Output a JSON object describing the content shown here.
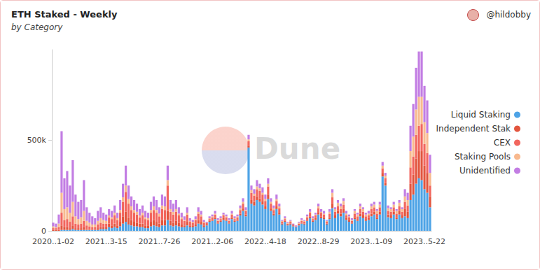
{
  "chart_data": {
    "type": "bar",
    "title": "ETH Staked - Weekly",
    "subtitle": "by Category",
    "author": "@hildobby",
    "watermark": "Dune",
    "categories": [
      "2020..1-02",
      null,
      null,
      null,
      null,
      null,
      null,
      null,
      null,
      null,
      null,
      null,
      null,
      null,
      null,
      null,
      null,
      null,
      null,
      "2021..3-15",
      null,
      null,
      null,
      null,
      null,
      null,
      null,
      null,
      null,
      null,
      null,
      null,
      null,
      null,
      null,
      null,
      null,
      null,
      "2021..7-26",
      null,
      null,
      null,
      null,
      null,
      null,
      null,
      null,
      null,
      null,
      null,
      null,
      null,
      null,
      null,
      null,
      null,
      null,
      "2021..2-06",
      null,
      null,
      null,
      null,
      null,
      null,
      null,
      null,
      null,
      null,
      null,
      null,
      null,
      null,
      null,
      null,
      null,
      null,
      "2022..4-18",
      null,
      null,
      null,
      null,
      null,
      null,
      null,
      null,
      null,
      null,
      null,
      null,
      null,
      null,
      null,
      null,
      null,
      null,
      "2022..8-29",
      null,
      null,
      null,
      null,
      null,
      null,
      null,
      null,
      null,
      null,
      null,
      null,
      null,
      null,
      null,
      null,
      null,
      null,
      "2023..1-09",
      null,
      null,
      null,
      null,
      null,
      null,
      null,
      null,
      null,
      null,
      null,
      null,
      null,
      null,
      null,
      null,
      null,
      null,
      "2023..5-22",
      null,
      null
    ],
    "series": [
      {
        "name": "Liquid Staking",
        "color": "#4da3e6",
        "values": [
          0,
          0,
          0,
          5000,
          5000,
          5000,
          5000,
          10000,
          5000,
          5000,
          5000,
          5000,
          5000,
          5000,
          5000,
          5000,
          5000,
          10000,
          10000,
          10000,
          20000,
          15000,
          20000,
          15000,
          25000,
          40000,
          50000,
          35000,
          30000,
          25000,
          25000,
          20000,
          20000,
          15000,
          15000,
          25000,
          30000,
          25000,
          20000,
          30000,
          30000,
          60000,
          30000,
          25000,
          30000,
          25000,
          20000,
          20000,
          30000,
          20000,
          20000,
          25000,
          40000,
          35000,
          20000,
          30000,
          50000,
          55000,
          65000,
          40000,
          50000,
          60000,
          55000,
          40000,
          65000,
          50000,
          55000,
          85000,
          110000,
          80000,
          460000,
          150000,
          140000,
          170000,
          160000,
          145000,
          120000,
          175000,
          110000,
          85000,
          120000,
          90000,
          35000,
          50000,
          30000,
          35000,
          25000,
          20000,
          30000,
          40000,
          35000,
          55000,
          70000,
          50000,
          60000,
          90000,
          70000,
          65000,
          35000,
          65000,
          125000,
          70000,
          95000,
          80000,
          100000,
          60000,
          50000,
          40000,
          65000,
          55000,
          80000,
          70000,
          55000,
          60000,
          80000,
          90000,
          65000,
          90000,
          300000,
          250000,
          75000,
          70000,
          90000,
          65000,
          90000,
          70000,
          80000,
          70000,
          170000,
          200000,
          260000,
          290000,
          280000,
          230000,
          210000,
          130000
        ]
      },
      {
        "name": "Independent Stak",
        "color": "#e2553e",
        "values": [
          5000,
          5000,
          5000,
          25000,
          15000,
          15000,
          10000,
          20000,
          10000,
          10000,
          10000,
          15000,
          5000,
          5000,
          5000,
          5000,
          10000,
          10000,
          10000,
          10000,
          20000,
          15000,
          20000,
          15000,
          25000,
          40000,
          55000,
          40000,
          30000,
          25000,
          20000,
          20000,
          20000,
          15000,
          15000,
          25000,
          30000,
          25000,
          20000,
          30000,
          30000,
          50000,
          25000,
          20000,
          25000,
          20000,
          15000,
          10000,
          20000,
          10000,
          10000,
          10000,
          20000,
          15000,
          10000,
          5000,
          5000,
          5000,
          10000,
          5000,
          5000,
          10000,
          5000,
          5000,
          10000,
          5000,
          5000,
          10000,
          15000,
          10000,
          10000,
          20000,
          20000,
          20000,
          20000,
          20000,
          15000,
          25000,
          15000,
          10000,
          15000,
          10000,
          5000,
          5000,
          5000,
          5000,
          5000,
          0,
          5000,
          5000,
          5000,
          5000,
          10000,
          5000,
          10000,
          10000,
          10000,
          10000,
          5000,
          10000,
          25000,
          15000,
          15000,
          15000,
          20000,
          10000,
          10000,
          5000,
          10000,
          10000,
          15000,
          15000,
          10000,
          10000,
          15000,
          15000,
          10000,
          15000,
          20000,
          15000,
          15000,
          15000,
          15000,
          10000,
          20000,
          15000,
          40000,
          35000,
          90000,
          110000,
          140000,
          150000,
          160000,
          130000,
          110000,
          60000
        ]
      },
      {
        "name": "CEX",
        "color": "#f2665e",
        "values": [
          10000,
          10000,
          15000,
          70000,
          40000,
          45000,
          35000,
          50000,
          25000,
          20000,
          25000,
          35000,
          20000,
          15000,
          10000,
          10000,
          20000,
          25000,
          20000,
          20000,
          35000,
          35000,
          45000,
          30000,
          50000,
          80000,
          110000,
          75000,
          55000,
          50000,
          45000,
          35000,
          45000,
          35000,
          30000,
          50000,
          55000,
          50000,
          40000,
          60000,
          55000,
          140000,
          50000,
          45000,
          50000,
          40000,
          30000,
          25000,
          40000,
          20000,
          15000,
          25000,
          35000,
          30000,
          15000,
          10000,
          10000,
          15000,
          15000,
          10000,
          10000,
          15000,
          15000,
          10000,
          15000,
          10000,
          15000,
          20000,
          25000,
          20000,
          25000,
          40000,
          35000,
          40000,
          40000,
          35000,
          30000,
          45000,
          25000,
          20000,
          30000,
          25000,
          10000,
          10000,
          5000,
          10000,
          5000,
          5000,
          5000,
          10000,
          10000,
          15000,
          20000,
          10000,
          15000,
          25000,
          20000,
          15000,
          10000,
          20000,
          35000,
          20000,
          25000,
          25000,
          25000,
          15000,
          15000,
          10000,
          20000,
          15000,
          25000,
          20000,
          15000,
          15000,
          25000,
          25000,
          20000,
          25000,
          25000,
          25000,
          20000,
          20000,
          25000,
          20000,
          25000,
          20000,
          40000,
          35000,
          90000,
          100000,
          130000,
          140000,
          150000,
          120000,
          110000,
          60000
        ]
      },
      {
        "name": "Staking Pools",
        "color": "#f8b98f",
        "values": [
          10000,
          5000,
          20000,
          110000,
          60000,
          65000,
          50000,
          80000,
          40000,
          30000,
          35000,
          55000,
          25000,
          20000,
          15000,
          15000,
          20000,
          25000,
          20000,
          15000,
          10000,
          10000,
          15000,
          10000,
          15000,
          25000,
          35000,
          25000,
          20000,
          15000,
          15000,
          10000,
          15000,
          10000,
          10000,
          15000,
          20000,
          15000,
          15000,
          20000,
          20000,
          30000,
          15000,
          15000,
          15000,
          10000,
          10000,
          5000,
          10000,
          5000,
          5000,
          5000,
          10000,
          10000,
          5000,
          0,
          5000,
          5000,
          5000,
          5000,
          5000,
          5000,
          5000,
          5000,
          5000,
          5000,
          5000,
          10000,
          10000,
          5000,
          10000,
          15000,
          10000,
          15000,
          15000,
          10000,
          10000,
          15000,
          10000,
          10000,
          10000,
          10000,
          5000,
          5000,
          5000,
          5000,
          0,
          0,
          5000,
          5000,
          5000,
          5000,
          5000,
          5000,
          5000,
          10000,
          5000,
          5000,
          5000,
          10000,
          25000,
          15000,
          20000,
          15000,
          20000,
          10000,
          5000,
          5000,
          15000,
          10000,
          15000,
          15000,
          10000,
          10000,
          15000,
          15000,
          15000,
          15000,
          15000,
          15000,
          15000,
          15000,
          15000,
          15000,
          20000,
          15000,
          30000,
          30000,
          90000,
          110000,
          140000,
          160000,
          150000,
          120000,
          110000,
          70000
        ]
      },
      {
        "name": "Unidentified",
        "color": "#c27de3",
        "values": [
          20000,
          20000,
          50000,
          340000,
          170000,
          200000,
          150000,
          230000,
          120000,
          95000,
          95000,
          170000,
          75000,
          55000,
          45000,
          35000,
          55000,
          60000,
          40000,
          35000,
          35000,
          35000,
          40000,
          30000,
          55000,
          75000,
          110000,
          75000,
          55000,
          55000,
          45000,
          35000,
          40000,
          35000,
          30000,
          45000,
          55000,
          55000,
          35000,
          60000,
          55000,
          80000,
          50000,
          45000,
          50000,
          35000,
          25000,
          20000,
          30000,
          15000,
          10000,
          15000,
          25000,
          20000,
          10000,
          5000,
          10000,
          10000,
          15000,
          10000,
          10000,
          10000,
          10000,
          10000,
          15000,
          10000,
          10000,
          15000,
          20000,
          15000,
          25000,
          25000,
          25000,
          35000,
          25000,
          30000,
          25000,
          30000,
          20000,
          15000,
          25000,
          15000,
          5000,
          10000,
          5000,
          5000,
          5000,
          5000,
          5000,
          10000,
          5000,
          10000,
          15000,
          10000,
          10000,
          15000,
          15000,
          15000,
          5000,
          15000,
          20000,
          10000,
          15000,
          15000,
          15000,
          15000,
          10000,
          10000,
          10000,
          10000,
          15000,
          10000,
          10000,
          15000,
          15000,
          15000,
          10000,
          15000,
          20000,
          15000,
          15000,
          10000,
          15000,
          10000,
          15000,
          10000,
          40000,
          40000,
          140000,
          180000,
          230000,
          250000,
          250000,
          200000,
          180000,
          100000
        ]
      }
    ],
    "ylim": [
      0,
      1000000
    ],
    "yticks": [
      0,
      {
        "value": 500000,
        "label": "500k"
      }
    ],
    "stacked": true,
    "grid": false,
    "legend": "right"
  }
}
